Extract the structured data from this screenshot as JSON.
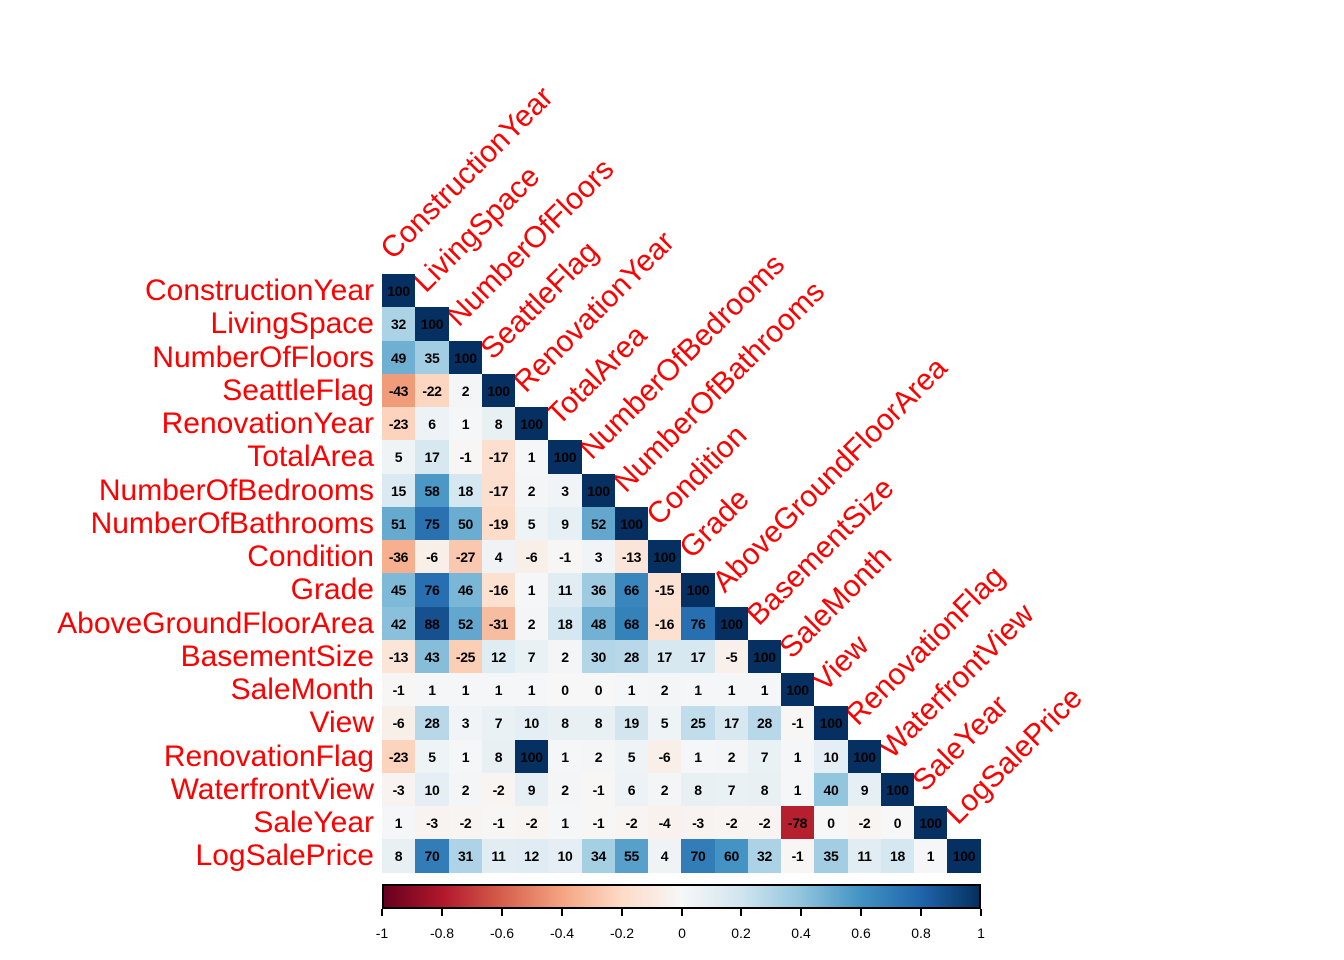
{
  "chart_data": {
    "type": "heatmap",
    "subtype": "correlation-matrix-lower-triangle",
    "title": "",
    "variables": [
      "ConstructionYear",
      "LivingSpace",
      "NumberOfFloors",
      "SeattleFlag",
      "RenovationYear",
      "TotalArea",
      "NumberOfBedrooms",
      "NumberOfBathrooms",
      "Condition",
      "Grade",
      "AboveGroundFloorArea",
      "BasementSize",
      "SaleMonth",
      "View",
      "RenovationFlag",
      "WaterfrontView",
      "SaleYear",
      "LogSalePrice"
    ],
    "values_scale": "correlation x 100",
    "matrix_lower_triangle": [
      [
        100
      ],
      [
        32,
        100
      ],
      [
        49,
        35,
        100
      ],
      [
        -43,
        -22,
        2,
        100
      ],
      [
        -23,
        6,
        1,
        8,
        100
      ],
      [
        5,
        17,
        -1,
        -17,
        1,
        100
      ],
      [
        15,
        58,
        18,
        -17,
        2,
        3,
        100
      ],
      [
        51,
        75,
        50,
        -19,
        5,
        9,
        52,
        100
      ],
      [
        -36,
        -6,
        -27,
        4,
        -6,
        -1,
        3,
        -13,
        100
      ],
      [
        45,
        76,
        46,
        -16,
        1,
        11,
        36,
        66,
        -15,
        100
      ],
      [
        42,
        88,
        52,
        -31,
        2,
        18,
        48,
        68,
        -16,
        76,
        100
      ],
      [
        -13,
        43,
        -25,
        12,
        7,
        2,
        30,
        28,
        17,
        17,
        -5,
        100
      ],
      [
        -1,
        1,
        1,
        1,
        1,
        0,
        0,
        1,
        2,
        1,
        1,
        1,
        100
      ],
      [
        -6,
        28,
        3,
        7,
        10,
        8,
        8,
        19,
        5,
        25,
        17,
        28,
        -1,
        100
      ],
      [
        -23,
        5,
        1,
        8,
        100,
        1,
        2,
        5,
        -6,
        1,
        2,
        7,
        1,
        10,
        100
      ],
      [
        -3,
        10,
        2,
        -2,
        9,
        2,
        -1,
        6,
        2,
        8,
        7,
        8,
        1,
        40,
        9,
        100
      ],
      [
        1,
        -3,
        -2,
        -1,
        -2,
        1,
        -1,
        -2,
        -4,
        -3,
        -2,
        -2,
        -78,
        0,
        -2,
        0,
        100
      ],
      [
        8,
        70,
        31,
        11,
        12,
        10,
        34,
        55,
        4,
        70,
        60,
        32,
        -1,
        35,
        11,
        18,
        1,
        100
      ]
    ],
    "colorbar": {
      "min": -1,
      "max": 1,
      "tick_labels": [
        "-1",
        "-0.8",
        "-0.6",
        "-0.4",
        "-0.2",
        "0",
        "0.2",
        "0.4",
        "0.6",
        "0.8",
        "1"
      ],
      "palette_name": "RdBu",
      "palette_stops": [
        "#67001F",
        "#B2182B",
        "#D6604D",
        "#F4A582",
        "#FDDBC7",
        "#F7F7F7",
        "#D1E5F0",
        "#92C5DE",
        "#4393C4",
        "#2166AC",
        "#053061"
      ],
      "position": "bottom"
    },
    "colors": {
      "label_color": "#FF0000",
      "cell_text_color": "#000000",
      "tick_text_color": "#000000",
      "background": "#FFFFFF"
    },
    "grid": false,
    "legend_position": "bottom"
  }
}
